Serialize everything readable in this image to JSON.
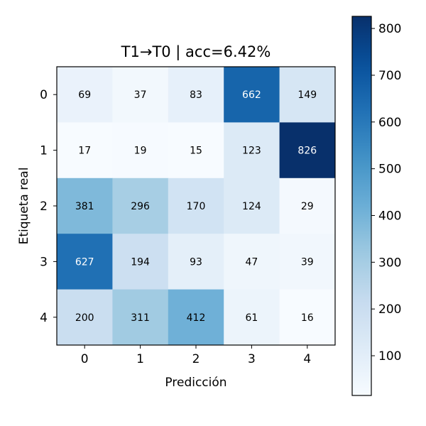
{
  "chart_data": {
    "type": "heatmap",
    "title": "T1→T0 | acc=6.42%",
    "xlabel": "Predicción",
    "ylabel": "Etiqueta real",
    "x_categories": [
      "0",
      "1",
      "2",
      "3",
      "4"
    ],
    "y_categories": [
      "0",
      "1",
      "2",
      "3",
      "4"
    ],
    "values": [
      [
        69,
        37,
        83,
        662,
        149
      ],
      [
        17,
        19,
        15,
        123,
        826
      ],
      [
        381,
        296,
        170,
        124,
        29
      ],
      [
        627,
        194,
        93,
        47,
        39
      ],
      [
        200,
        311,
        412,
        61,
        16
      ]
    ],
    "colormap": "Blues",
    "colorbar": {
      "min": 15,
      "max": 826,
      "ticks": [
        "100",
        "200",
        "300",
        "400",
        "500",
        "600",
        "700",
        "800"
      ]
    }
  }
}
